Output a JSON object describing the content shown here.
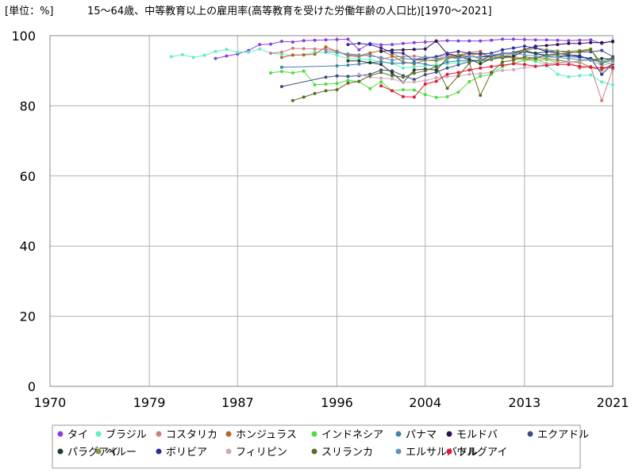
{
  "unit_label": "[単位：%]",
  "chart_data": {
    "type": "line",
    "title": "15～64歳、中等教育以上の雇用率(高等教育を受けた労働年齢の人口比)[1970～2021]",
    "xlabel": "",
    "ylabel": "",
    "xlim": [
      1970,
      2021
    ],
    "ylim": [
      0,
      100
    ],
    "x_ticks": [
      "1970",
      "1979",
      "1987",
      "1996",
      "2004",
      "2013",
      "2021"
    ],
    "y_ticks": [
      "0",
      "20",
      "40",
      "60",
      "80",
      "100"
    ],
    "grid": true,
    "legend_position": "bottom",
    "series": [
      {
        "name": "タイ",
        "color": "#8a3fd8",
        "x": [
          1985,
          1986,
          1987,
          1988,
          1989,
          1990,
          1991,
          1992,
          1993,
          1994,
          1995,
          1996,
          1997,
          1998,
          1999,
          2000,
          2001,
          2002,
          2003,
          2004,
          2005,
          2006,
          2007,
          2008,
          2009,
          2010,
          2011,
          2012,
          2013,
          2014,
          2015,
          2016,
          2017,
          2018,
          2019,
          2020,
          2021
        ],
        "y": [
          93.5,
          94.2,
          94.8,
          95.8,
          97.5,
          97.6,
          98.4,
          98.2,
          98.6,
          98.7,
          98.8,
          98.9,
          99.0,
          96.0,
          97.8,
          97.4,
          97.5,
          97.8,
          98.0,
          98.2,
          98.4,
          98.6,
          98.5,
          98.5,
          98.5,
          98.7,
          99.0,
          99.0,
          98.9,
          98.8,
          98.8,
          98.7,
          98.6,
          98.7,
          98.8,
          97.8,
          98.5
        ]
      },
      {
        "name": "ブラジル",
        "color": "#5ef0c0",
        "x": [
          1981,
          1982,
          1983,
          1984,
          1985,
          1986,
          1987,
          1988,
          1989,
          1990,
          1991,
          1992,
          1993,
          1994,
          1995,
          1996,
          1997,
          1998,
          1999,
          2000,
          2001,
          2002,
          2003,
          2004,
          2005,
          2006,
          2007,
          2008,
          2009,
          2010,
          2011,
          2012,
          2013,
          2014,
          2015,
          2016,
          2017,
          2018,
          2019,
          2020,
          2021
        ],
        "y": [
          94.0,
          94.6,
          93.8,
          94.4,
          95.5,
          96.1,
          95.3,
          95.3,
          96.2,
          95.0,
          94.7,
          94.4,
          94.6,
          95.3,
          95.2,
          94.4,
          93.5,
          93.4,
          93.2,
          92.5,
          92.2,
          90.8,
          91.1,
          91.4,
          91.8,
          92.0,
          92.3,
          92.9,
          92.6,
          93.3,
          93.6,
          93.8,
          93.5,
          92.6,
          91.6,
          89.0,
          88.3,
          88.6,
          88.8,
          86.8,
          86.0
        ]
      },
      {
        "name": "コスタリカ",
        "color": "#cc7f7a",
        "x": [
          1990,
          1991,
          1992,
          1993,
          1994,
          1995,
          1996,
          1997,
          1998,
          1999,
          2000,
          2001,
          2002,
          2003,
          2004,
          2005,
          2006,
          2007,
          2008,
          2009,
          2010,
          2011,
          2012,
          2013,
          2014,
          2015,
          2016,
          2017,
          2018,
          2019,
          2020,
          2021
        ],
        "y": [
          95.0,
          95.3,
          96.4,
          96.3,
          96.2,
          96.1,
          95.6,
          94.2,
          94.0,
          94.8,
          93.3,
          94.0,
          94.0,
          94.2,
          93.8,
          94.0,
          94.3,
          94.5,
          94.6,
          94.7,
          94.3,
          93.6,
          94.2,
          93.2,
          93.5,
          92.0,
          92.2,
          92.5,
          90.8,
          91.2,
          81.5,
          90.5
        ]
      },
      {
        "name": "ホンジュラス",
        "color": "#b5652a",
        "x": [
          1991,
          1992,
          1993,
          1994,
          1995,
          1996,
          1997,
          1998,
          1999,
          2000,
          2001,
          2002,
          2003,
          2004,
          2005,
          2006,
          2007,
          2008,
          2009,
          2010,
          2011,
          2012,
          2013,
          2014,
          2015,
          2016,
          2017,
          2018,
          2019,
          2020,
          2021
        ],
        "y": [
          93.8,
          94.5,
          94.5,
          94.7,
          96.8,
          95.5,
          94.5,
          94.3,
          95.1,
          95.8,
          94.3,
          92.5,
          92.0,
          93.0,
          93.0,
          94.0,
          94.2,
          95.2,
          95.5,
          93.5,
          94.3,
          93.5,
          93.3,
          93.8,
          93.5,
          93.0,
          92.6,
          92.4,
          91.0,
          90.2,
          92.0
        ]
      },
      {
        "name": "インドネシア",
        "color": "#4dde3c",
        "x": [
          1990,
          1991,
          1992,
          1993,
          1994,
          1995,
          1996,
          1997,
          1998,
          1999,
          2000,
          2001,
          2002,
          2003,
          2004,
          2005,
          2006,
          2007,
          2008,
          2009,
          2010,
          2011,
          2012,
          2013,
          2014,
          2015,
          2016,
          2017,
          2018,
          2019,
          2020,
          2021
        ],
        "y": [
          89.4,
          89.8,
          89.4,
          89.9,
          86.0,
          86.2,
          86.4,
          87.3,
          86.9,
          84.9,
          86.8,
          84.3,
          84.6,
          84.5,
          83.2,
          82.4,
          82.6,
          83.9,
          86.9,
          88.4,
          89.0,
          91.2,
          92.1,
          93.0,
          93.0,
          93.2,
          92.3,
          92.6,
          92.7,
          93.2,
          92.6,
          92.0
        ]
      },
      {
        "name": "パナマ",
        "color": "#3e84aa",
        "x": [
          1991,
          1996,
          1997,
          1998,
          1999,
          2000,
          2001,
          2002,
          2003,
          2004,
          2005,
          2006,
          2007,
          2008,
          2009,
          2010,
          2011,
          2012,
          2013,
          2014,
          2015,
          2016,
          2017,
          2018,
          2019,
          2020,
          2021
        ],
        "y": [
          91.0,
          91.4,
          91.6,
          91.9,
          92.3,
          92.6,
          92.1,
          92.2,
          92.3,
          91.9,
          91.2,
          92.5,
          92.8,
          93.1,
          92.8,
          93.2,
          94.0,
          94.2,
          95.5,
          94.8,
          94.5,
          94.4,
          94.0,
          93.8,
          93.5,
          92.5,
          93.8
        ]
      },
      {
        "name": "モルドバ",
        "color": "#2d0f50",
        "x": [
          2000,
          2001,
          2002,
          2003,
          2004,
          2005,
          2006,
          2007,
          2008,
          2009,
          2010,
          2011,
          2012,
          2013,
          2014,
          2015,
          2016,
          2017,
          2018,
          2019,
          2020,
          2021
        ],
        "y": [
          95.5,
          95.9,
          96.0,
          96.1,
          96.2,
          98.5,
          94.8,
          94.3,
          94.0,
          93.9,
          94.2,
          94.7,
          95.2,
          96.0,
          97.0,
          97.2,
          97.5,
          97.8,
          97.8,
          98.0,
          98.0,
          98.3
        ]
      },
      {
        "name": "エクアドル",
        "color": "#3e4a88",
        "x": [
          1991,
          1995,
          1996,
          1997,
          1998,
          1999,
          2000,
          2001,
          2002,
          2003,
          2004,
          2005,
          2006,
          2007,
          2008,
          2009,
          2010,
          2011,
          2012,
          2013,
          2014,
          2015,
          2016,
          2017,
          2018,
          2019,
          2020,
          2021
        ],
        "y": [
          85.5,
          88.2,
          88.5,
          88.4,
          88.6,
          89.0,
          90.2,
          90.0,
          88.6,
          87.5,
          88.9,
          89.6,
          90.8,
          91.7,
          92.6,
          93.0,
          94.3,
          95.0,
          95.1,
          95.4,
          95.0,
          95.4,
          95.6,
          95.2,
          95.3,
          95.4,
          95.8,
          94.0
        ]
      },
      {
        "name": "パラグアイ",
        "color": "#253a25",
        "x": [
          1997,
          1998,
          1999,
          2000,
          2001,
          2002,
          2003,
          2004,
          2005,
          2006,
          2007,
          2008,
          2009,
          2010,
          2011,
          2012,
          2013,
          2014,
          2015,
          2016,
          2017,
          2018,
          2019,
          2020,
          2021
        ],
        "y": [
          92.8,
          92.8,
          92.3,
          91.8,
          89.4,
          86.7,
          90.2,
          90.5,
          90.2,
          93.5,
          94.0,
          93.3,
          92.0,
          93.5,
          93.8,
          94.2,
          95.7,
          95.0,
          94.2,
          93.8,
          94.5,
          94.3,
          93.0,
          93.5,
          93.3
        ]
      },
      {
        "name": "ペルー",
        "color": "#8a9140",
        "x": [
          2001,
          2002,
          2003,
          2004,
          2005,
          2006,
          2007,
          2008,
          2009,
          2010,
          2011,
          2012,
          2013,
          2014,
          2015,
          2016,
          2017,
          2018,
          2019,
          2020,
          2021
        ],
        "y": [
          95.0,
          93.5,
          93.2,
          93.0,
          92.8,
          93.5,
          94.5,
          95.0,
          93.0,
          93.5,
          94.0,
          95.0,
          95.6,
          96.5,
          96.0,
          95.6,
          95.5,
          95.8,
          96.2,
          91.0,
          90.8
        ]
      },
      {
        "name": "ボリビア",
        "color": "#2c2c96",
        "x": [
          1997,
          1998,
          1999,
          2000,
          2001,
          2002,
          2003,
          2004,
          2005,
          2006,
          2007,
          2008,
          2009,
          2010,
          2011,
          2012,
          2013,
          2014,
          2015,
          2016,
          2017,
          2018,
          2019,
          2020,
          2021
        ],
        "y": [
          97.5,
          97.8,
          97.5,
          96.5,
          95.2,
          95.0,
          93.0,
          93.5,
          94.0,
          95.0,
          95.5,
          95.0,
          94.8,
          95.0,
          96.0,
          96.5,
          97.0,
          96.5,
          95.5,
          95.0,
          94.5,
          94.0,
          93.5,
          89.0,
          92.0
        ]
      },
      {
        "name": "フィリピン",
        "color": "#c9a9c0",
        "x": [
          1998,
          1999,
          2000,
          2001,
          2002,
          2003,
          2004,
          2005,
          2006,
          2007,
          2008,
          2009,
          2010,
          2011,
          2012,
          2013,
          2014,
          2015,
          2016,
          2017,
          2018,
          2019,
          2020,
          2021
        ],
        "y": [
          89.0,
          88.2,
          87.9,
          87.7,
          86.7,
          86.8,
          87.2,
          88.0,
          88.3,
          88.5,
          89.0,
          89.2,
          89.6,
          90.1,
          90.3,
          90.9,
          91.2,
          91.8,
          92.2,
          92.5,
          92.8,
          93.0,
          91.5,
          92.3
        ]
      },
      {
        "name": "スリランカ",
        "color": "#5e6a22",
        "x": [
          1992,
          1993,
          1994,
          1995,
          1996,
          1997,
          1998,
          1999,
          2000,
          2001,
          2002,
          2003,
          2004,
          2005,
          2006,
          2007,
          2008,
          2009,
          2010,
          2011,
          2012,
          2013,
          2014,
          2015,
          2016,
          2017,
          2018,
          2019,
          2020,
          2021
        ],
        "y": [
          81.5,
          82.5,
          83.5,
          84.3,
          84.6,
          86.5,
          87.0,
          88.6,
          89.5,
          88.6,
          88.2,
          89.3,
          90.0,
          91.2,
          85.0,
          88.5,
          92.2,
          83.0,
          89.5,
          92.5,
          93.0,
          94.0,
          93.5,
          94.5,
          94.8,
          95.0,
          95.5,
          96.0,
          92.0,
          93.5
        ]
      },
      {
        "name": "エルサルバドル",
        "color": "#5b95c0",
        "x": [
          1995,
          1996,
          1997,
          1998,
          1999,
          2000,
          2001,
          2002,
          2003,
          2004,
          2005,
          2006,
          2007,
          2008,
          2009,
          2010,
          2011,
          2012,
          2013,
          2014,
          2015,
          2016,
          2017,
          2018,
          2019,
          2020,
          2021
        ],
        "y": [
          95.5,
          95.2,
          94.8,
          94.5,
          94.2,
          93.8,
          93.0,
          93.5,
          93.2,
          94.0,
          93.5,
          93.8,
          93.5,
          94.0,
          94.0,
          94.5,
          94.8,
          95.0,
          94.5,
          94.2,
          94.0,
          93.8,
          93.5,
          93.2,
          93.0,
          92.5,
          92.8
        ]
      },
      {
        "name": "ウルグアイ",
        "color": "#e0183c",
        "x": [
          2000,
          2001,
          2002,
          2003,
          2004,
          2005,
          2006,
          2007,
          2008,
          2009,
          2010,
          2011,
          2012,
          2013,
          2014,
          2015,
          2016,
          2017,
          2018,
          2019,
          2020,
          2021
        ],
        "y": [
          85.7,
          84.3,
          82.6,
          82.5,
          86.2,
          87.0,
          89.0,
          89.5,
          90.2,
          90.8,
          91.2,
          91.6,
          92.0,
          91.8,
          91.3,
          91.5,
          91.8,
          91.8,
          91.3,
          91.0,
          90.8,
          91.0
        ]
      }
    ]
  }
}
